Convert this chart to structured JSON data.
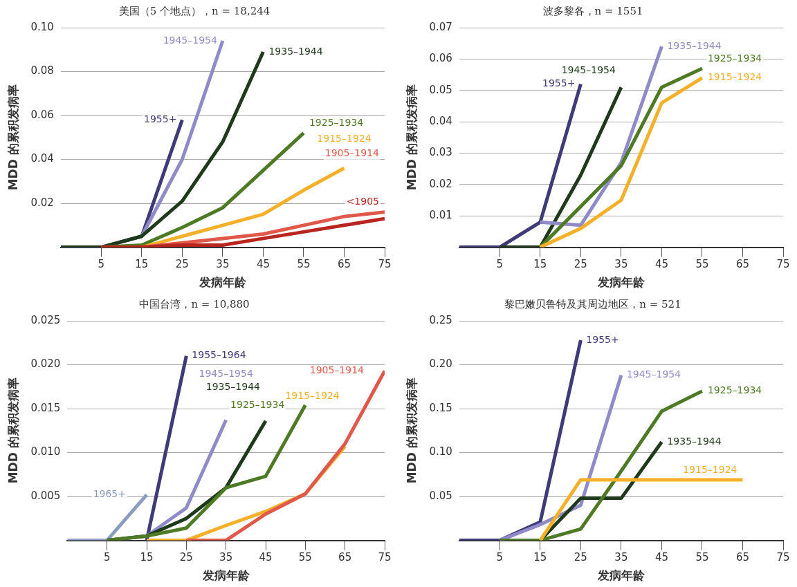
{
  "chart_data": [
    {
      "type": "line",
      "title": "美国（5 个地点），n = 18,244",
      "xlabel": "发病年龄",
      "ylabel": "MDD 的累积发病率",
      "xlim": [
        -5,
        75
      ],
      "xticks": [
        5,
        15,
        25,
        35,
        45,
        55,
        65,
        75
      ],
      "ylim": [
        0,
        0.1
      ],
      "yticks": [
        0.02,
        0.04,
        0.06,
        0.08,
        {
          "value": 0.1,
          "label": "0.10"
        }
      ],
      "grid": "y",
      "legend": false,
      "series": [
        {
          "name": "<1905",
          "color": "#b8261f",
          "x": [
            5,
            15,
            25,
            35,
            45,
            55,
            65,
            75
          ],
          "values": [
            0,
            0,
            0.001,
            0.001,
            0.004,
            0.007,
            0.01,
            0.013
          ]
        },
        {
          "name": "1905–1914",
          "color": "#e0584a",
          "x": [
            5,
            15,
            25,
            35,
            45,
            55,
            65,
            75
          ],
          "values": [
            0,
            0,
            0.002,
            0.004,
            0.006,
            0.01,
            0.014,
            0.016
          ]
        },
        {
          "name": "1915–1924",
          "color": "#f5b02a",
          "x": [
            15,
            25,
            35,
            45,
            55,
            65
          ],
          "values": [
            0,
            0.005,
            0.01,
            0.015,
            0.026,
            0.036
          ]
        },
        {
          "name": "1925–1934",
          "color": "#4f7a25",
          "x": [
            5,
            15,
            25,
            35,
            45,
            55
          ],
          "values": [
            0,
            0.001,
            0.009,
            0.018,
            0.035,
            0.052
          ]
        },
        {
          "name": "1935–1944",
          "color": "#1e3a1a",
          "x": [
            -5,
            5,
            15,
            25,
            35,
            45
          ],
          "values": [
            0,
            0,
            0.005,
            0.021,
            0.048,
            0.089
          ]
        },
        {
          "name": "1945–1954",
          "color": "#8f8bc8",
          "x": [
            -5,
            5,
            15,
            25,
            35
          ],
          "values": [
            0,
            0,
            0.005,
            0.04,
            0.094
          ]
        },
        {
          "name": "1955+",
          "color": "#3f3a78",
          "x": [
            -5,
            5,
            15,
            25
          ],
          "values": [
            0,
            0,
            0.005,
            0.058
          ]
        }
      ]
    },
    {
      "type": "line",
      "title": "波多黎各，n = 1551",
      "xlabel": "发病年龄",
      "ylabel": "MDD 的累积发病率",
      "xlim": [
        -5,
        75
      ],
      "xticks": [
        5,
        15,
        25,
        35,
        45,
        55,
        65,
        75
      ],
      "ylim": [
        0,
        0.07
      ],
      "yticks": [
        0.01,
        0.02,
        0.03,
        0.04,
        0.05,
        0.06,
        0.07
      ],
      "grid": "y",
      "legend": false,
      "series": [
        {
          "name": "1915–1924",
          "color": "#f5b02a",
          "x": [
            15,
            25,
            35,
            45,
            55
          ],
          "values": [
            0,
            0.006,
            0.015,
            0.046,
            0.054
          ]
        },
        {
          "name": "1925–1934",
          "color": "#4f7a25",
          "x": [
            15,
            25,
            35,
            45,
            55
          ],
          "values": [
            0,
            0.013,
            0.026,
            0.051,
            0.057
          ]
        },
        {
          "name": "1935–1944",
          "color": "#8f8bc8",
          "x": [
            15,
            25,
            35,
            45
          ],
          "values": [
            0.008,
            0.007,
            0.027,
            0.064
          ]
        },
        {
          "name": "1945–1954",
          "color": "#1e3a1a",
          "x": [
            5,
            15,
            25,
            35
          ],
          "values": [
            0,
            0,
            0.023,
            0.051
          ]
        },
        {
          "name": "1955+",
          "color": "#3f3a78",
          "x": [
            -5,
            5,
            15,
            25
          ],
          "values": [
            0,
            0,
            0.008,
            0.052
          ]
        }
      ]
    },
    {
      "type": "line",
      "title": "中国台湾，n = 10,880",
      "xlabel": "发病年龄",
      "ylabel": "MDD 的累积发病率",
      "xlim": [
        -5,
        75
      ],
      "xticks": [
        5,
        15,
        25,
        35,
        45,
        55,
        65,
        75
      ],
      "ylim": [
        0,
        0.025
      ],
      "yticks": [
        0.005,
        {
          "value": 0.01,
          "label": "0.010"
        },
        0.015,
        {
          "value": 0.02,
          "label": "0.020"
        },
        0.025
      ],
      "grid": "y",
      "legend": false,
      "series": [
        {
          "name": "1905–1914",
          "color": "#e0584a",
          "x": [
            25,
            35,
            45,
            55,
            65,
            75
          ],
          "values": [
            0,
            0,
            0.003,
            0.0053,
            0.011,
            0.0193
          ]
        },
        {
          "name": "1915–1924",
          "color": "#f5b02a",
          "x": [
            15,
            25,
            35,
            45,
            55,
            65
          ],
          "values": [
            0,
            0,
            0.0017,
            0.0033,
            0.0053,
            0.0107
          ]
        },
        {
          "name": "1925–1934",
          "color": "#4f7a25",
          "x": [
            5,
            15,
            25,
            35,
            45,
            55
          ],
          "values": [
            0,
            0.0005,
            0.0014,
            0.006,
            0.0073,
            0.0154
          ]
        },
        {
          "name": "1935–1944",
          "color": "#1e3a1a",
          "x": [
            5,
            15,
            25,
            35,
            45
          ],
          "values": [
            0,
            0.0005,
            0.0025,
            0.006,
            0.0136
          ]
        },
        {
          "name": "1945–1954",
          "color": "#8f8bc8",
          "x": [
            15,
            25,
            35
          ],
          "values": [
            0.0005,
            0.0037,
            0.0137
          ]
        },
        {
          "name": "1955–1964",
          "color": "#3f3a78",
          "x": [
            15,
            25
          ],
          "values": [
            0,
            0.021
          ]
        },
        {
          "name": "1965+",
          "color": "#8c9cbf",
          "x": [
            -5,
            5,
            15
          ],
          "values": [
            0,
            0,
            0.0052
          ]
        }
      ]
    },
    {
      "type": "line",
      "title": "黎巴嫩贝鲁特及其周边地区，n = 521",
      "xlabel": "发病年龄",
      "ylabel": "MDD 的累积发病率",
      "xlim": [
        -5,
        75
      ],
      "xticks": [
        5,
        15,
        25,
        35,
        45,
        55,
        65,
        75
      ],
      "ylim": [
        0,
        0.25
      ],
      "yticks": [
        0.05,
        {
          "value": 0.1,
          "label": "0.10"
        },
        0.15,
        {
          "value": 0.2,
          "label": "0.20"
        },
        0.25
      ],
      "grid": "y",
      "legend": false,
      "series": [
        {
          "name": "1915–1924",
          "color": "#f5b02a",
          "x": [
            15,
            25,
            35,
            45,
            55,
            65
          ],
          "values": [
            0,
            0.069,
            0.069,
            0.069,
            0.069,
            0.069
          ]
        },
        {
          "name": "1925–1934",
          "color": "#4f7a25",
          "x": [
            5,
            15,
            25,
            35,
            45,
            55
          ],
          "values": [
            0,
            0,
            0.013,
            0.079,
            0.147,
            0.17
          ]
        },
        {
          "name": "1935–1944",
          "color": "#1e3a1a",
          "x": [
            15,
            25,
            35,
            45
          ],
          "values": [
            0,
            0.048,
            0.048,
            0.112
          ]
        },
        {
          "name": "1945–1954",
          "color": "#8f8bc8",
          "x": [
            5,
            15,
            25,
            35
          ],
          "values": [
            0,
            0.018,
            0.04,
            0.188
          ]
        },
        {
          "name": "1955+",
          "color": "#3f3a78",
          "x": [
            -5,
            5,
            15,
            25
          ],
          "values": [
            0,
            0,
            0.021,
            0.228
          ]
        }
      ]
    }
  ]
}
